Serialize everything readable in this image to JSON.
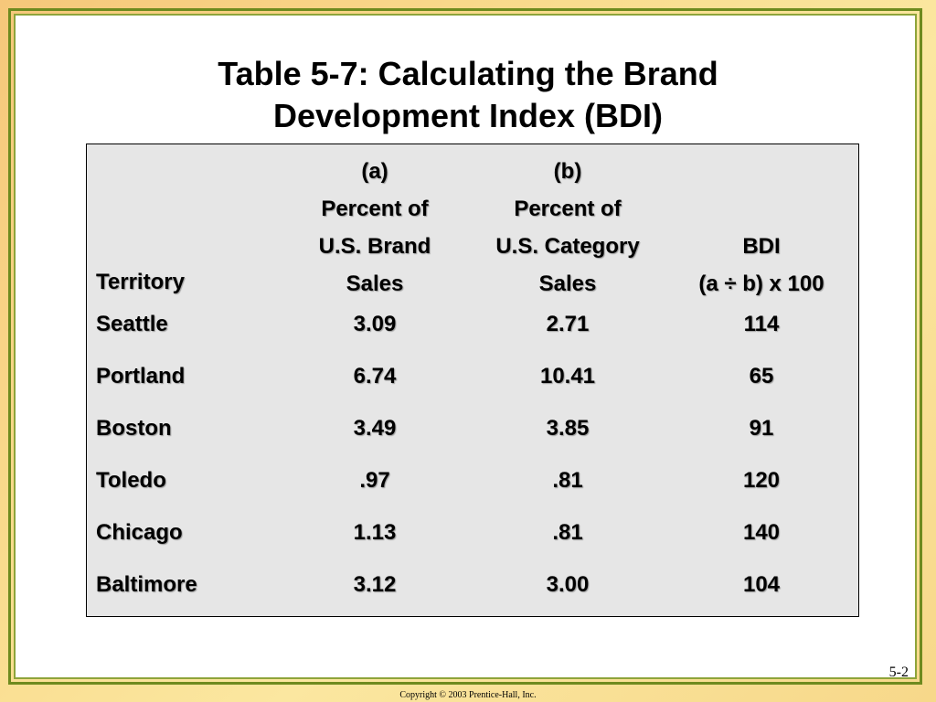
{
  "slide": {
    "title_line1": "Table 5-7: Calculating the Brand",
    "title_line2": "Development Index (BDI)",
    "slide_number": "5-2",
    "copyright": "Copyright © 2003 Prentice-Hall, Inc."
  },
  "table": {
    "headers": {
      "territory": [
        "Territory"
      ],
      "col_a": [
        "(a)",
        "Percent of",
        "U.S. Brand",
        "Sales"
      ],
      "col_b": [
        "(b)",
        "Percent of",
        "U.S. Category",
        "Sales"
      ],
      "col_bdi": [
        "BDI",
        "(a ÷ b) x 100"
      ]
    },
    "rows": [
      {
        "territory": "Seattle",
        "a": "3.09",
        "b": "2.71",
        "bdi": "114"
      },
      {
        "territory": "Portland",
        "a": "6.74",
        "b": "10.41",
        "bdi": "65"
      },
      {
        "territory": "Boston",
        "a": "3.49",
        "b": "3.85",
        "bdi": "91"
      },
      {
        "territory": "Toledo",
        "a": ".97",
        "b": ".81",
        "bdi": "120"
      },
      {
        "territory": "Chicago",
        "a": "1.13",
        "b": ".81",
        "bdi": "140"
      },
      {
        "territory": "Baltimore",
        "a": "3.12",
        "b": "3.00",
        "bdi": "104"
      }
    ]
  }
}
